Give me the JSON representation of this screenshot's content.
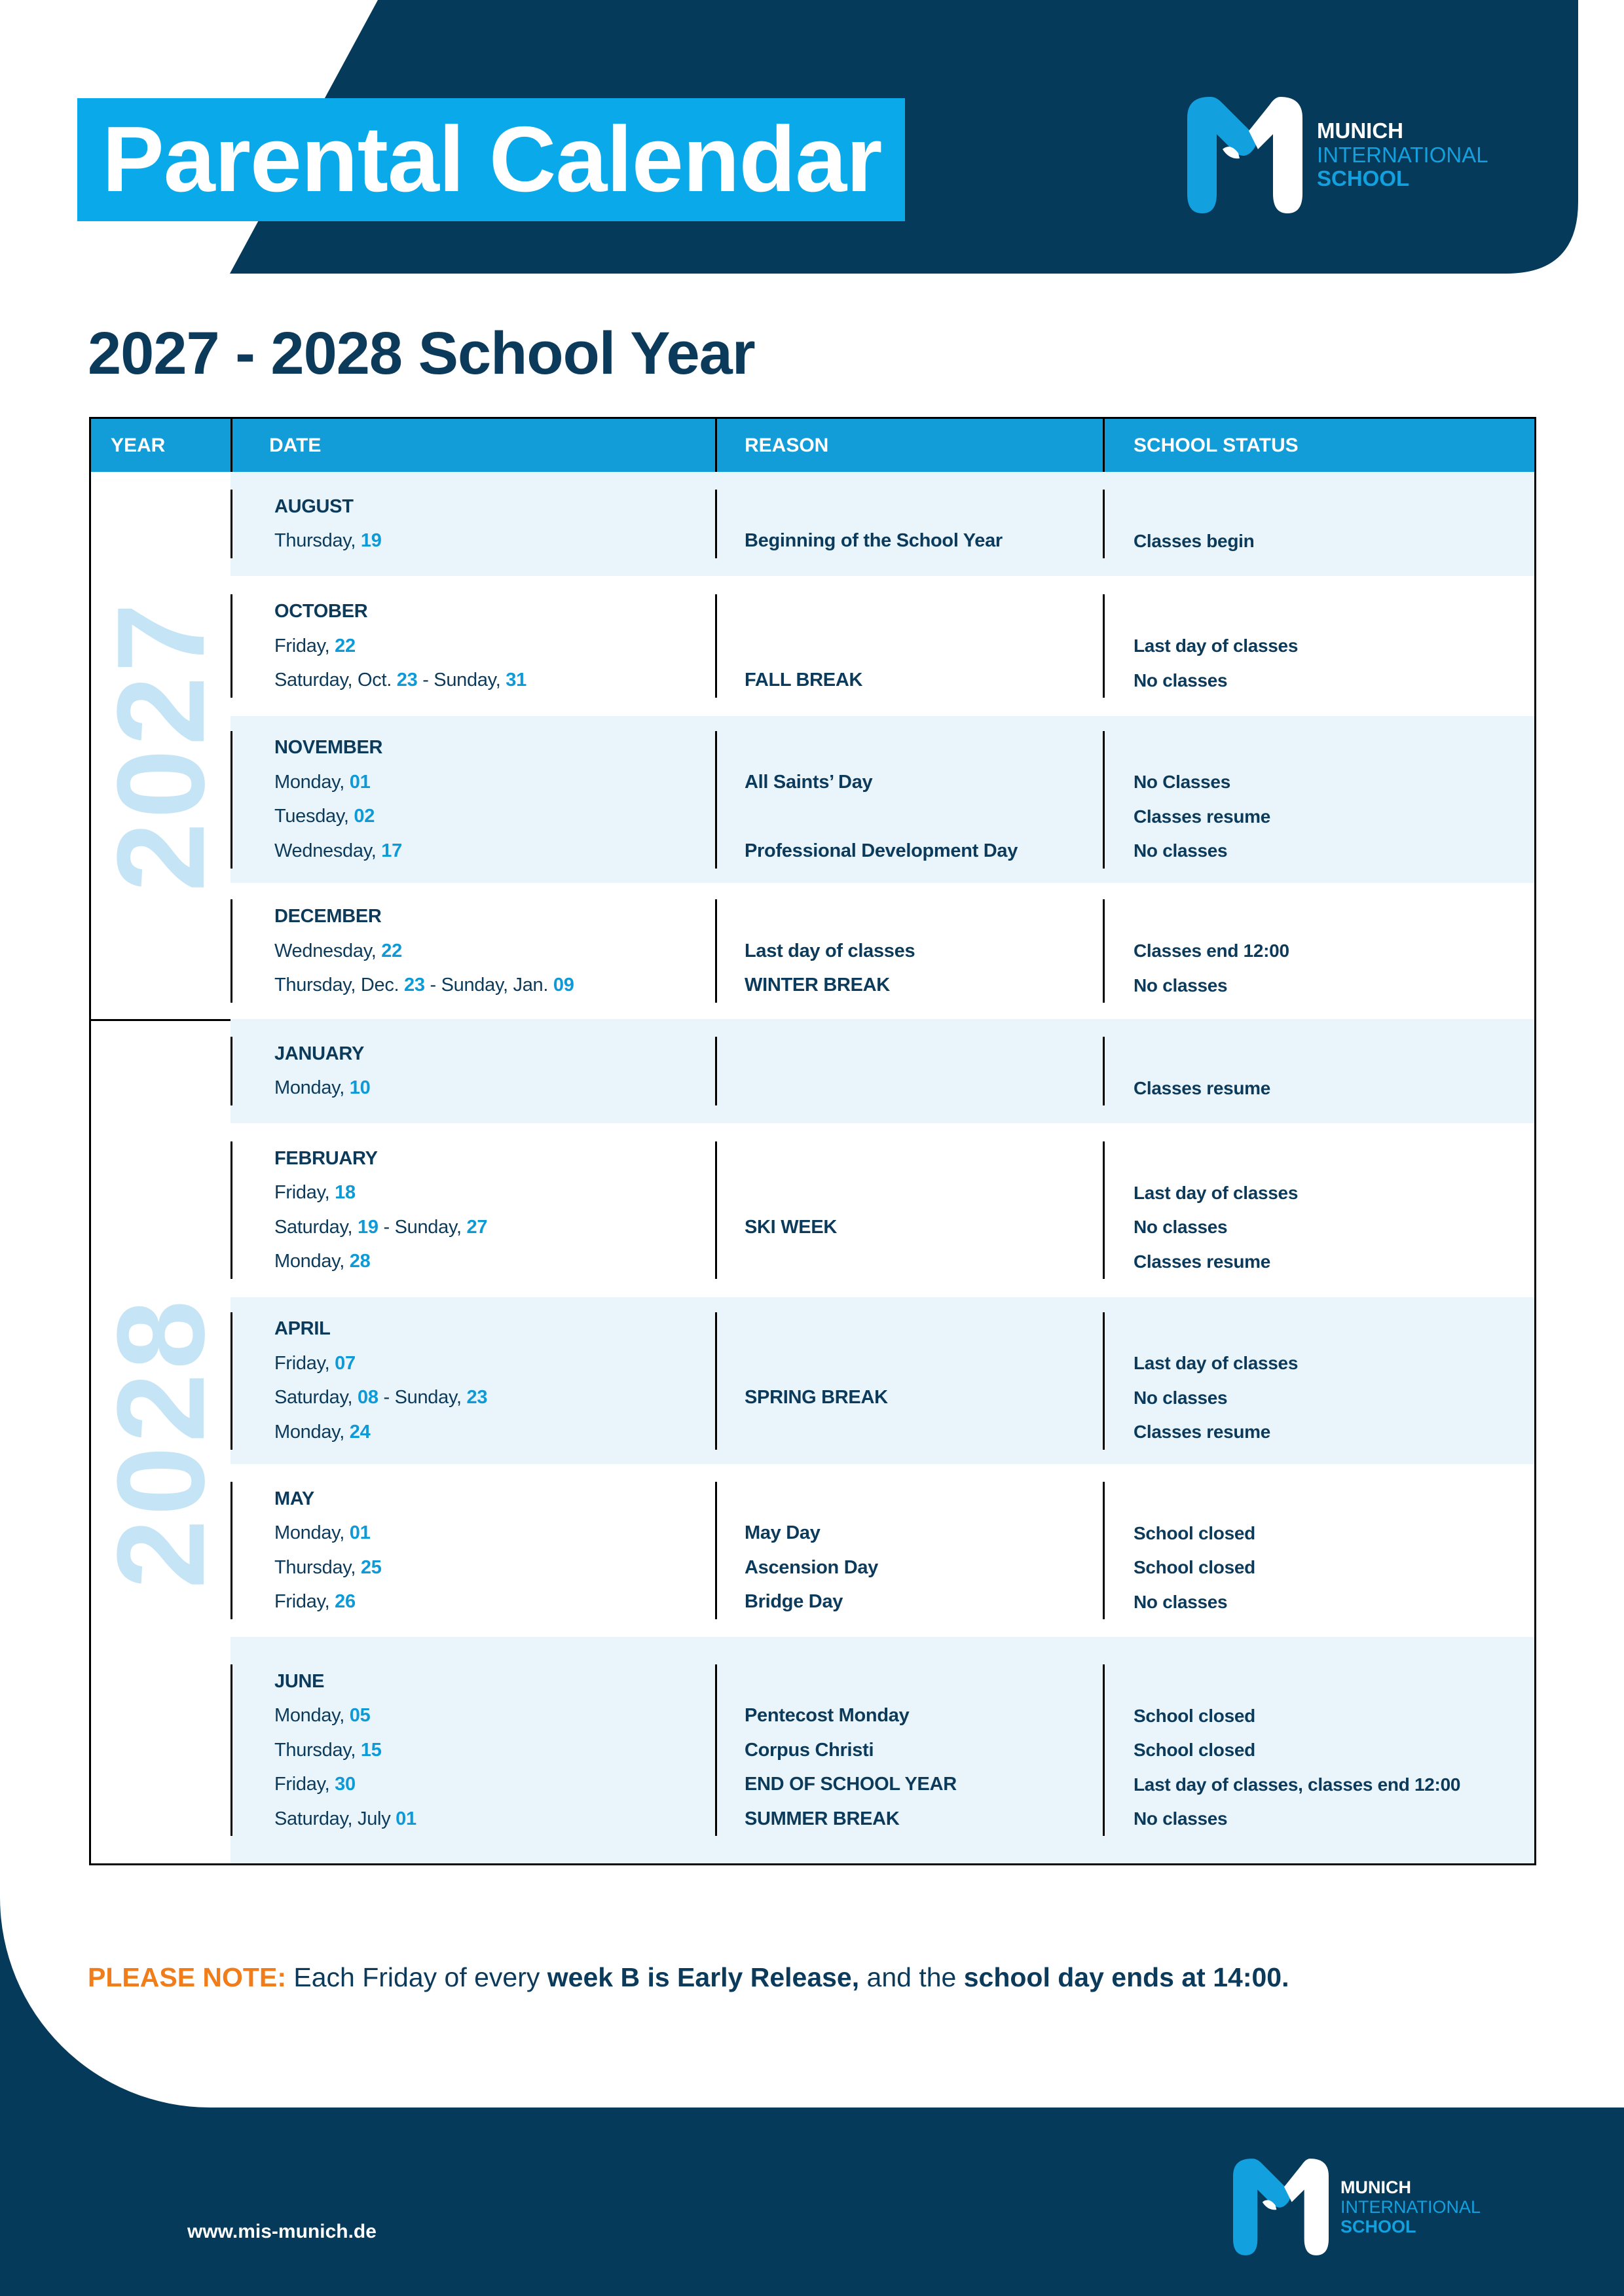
{
  "header": {
    "title": "Parental Calendar",
    "logo": {
      "line1": "MUNICH",
      "line2": "INTERNATIONAL",
      "line3": "SCHOOL"
    }
  },
  "heading": "2027 - 2028 School Year",
  "table": {
    "columns": [
      "YEAR",
      "DATE",
      "REASON",
      "SCHOOL STATUS"
    ],
    "years": [
      "2027",
      "2028"
    ],
    "rows": [
      {
        "year": "2027",
        "month": "AUGUST",
        "lines": [
          {
            "date": [
              "Thursday, ",
              "19"
            ],
            "reason": "Beginning of the School Year",
            "status": "Classes begin"
          }
        ]
      },
      {
        "year": "2027",
        "month": "OCTOBER",
        "lines": [
          {
            "date": [
              "Friday, ",
              "22"
            ],
            "reason": "",
            "status": "Last day of classes"
          },
          {
            "date": [
              "Saturday, Oct. ",
              "23",
              " - Sunday, ",
              "31"
            ],
            "reason": "FALL BREAK",
            "status": "No classes"
          }
        ]
      },
      {
        "year": "2027",
        "month": "NOVEMBER",
        "lines": [
          {
            "date": [
              "Monday, ",
              "01"
            ],
            "reason": "All Saints’ Day",
            "status": "No Classes"
          },
          {
            "date": [
              "Tuesday, ",
              "02"
            ],
            "reason": "",
            "status": "Classes resume"
          },
          {
            "date": [
              "Wednesday, ",
              "17"
            ],
            "reason": "Professional Development Day",
            "status": "No classes"
          }
        ]
      },
      {
        "year": "2027",
        "month": "DECEMBER",
        "lines": [
          {
            "date": [
              "Wednesday, ",
              "22"
            ],
            "reason": "Last day of classes",
            "status": "Classes end 12:00"
          },
          {
            "date": [
              "Thursday, Dec. ",
              "23",
              " - Sunday, Jan. ",
              "09"
            ],
            "reason": "WINTER BREAK",
            "status": "No classes"
          }
        ]
      },
      {
        "year": "2028",
        "month": "JANUARY",
        "lines": [
          {
            "date": [
              "Monday, ",
              "10"
            ],
            "reason": "",
            "status": "Classes resume"
          }
        ]
      },
      {
        "year": "2028",
        "month": "FEBRUARY",
        "lines": [
          {
            "date": [
              "Friday, ",
              "18"
            ],
            "reason": "",
            "status": "Last day of classes"
          },
          {
            "date": [
              "Saturday, ",
              "19",
              " - Sunday, ",
              "27"
            ],
            "reason": "SKI WEEK",
            "status": "No classes"
          },
          {
            "date": [
              "Monday, ",
              "28"
            ],
            "reason": "",
            "status": "Classes resume"
          }
        ]
      },
      {
        "year": "2028",
        "month": "APRIL",
        "lines": [
          {
            "date": [
              "Friday, ",
              "07"
            ],
            "reason": "",
            "status": "Last day of classes"
          },
          {
            "date": [
              "Saturday, ",
              "08",
              " - Sunday, ",
              "23"
            ],
            "reason": "SPRING BREAK",
            "status": "No classes"
          },
          {
            "date": [
              "Monday, ",
              "24"
            ],
            "reason": "",
            "status": "Classes resume"
          }
        ]
      },
      {
        "year": "2028",
        "month": "MAY",
        "lines": [
          {
            "date": [
              "Monday, ",
              "01"
            ],
            "reason": "May Day",
            "status": "School closed"
          },
          {
            "date": [
              "Thursday, ",
              "25"
            ],
            "reason": "Ascension Day",
            "status": "School closed"
          },
          {
            "date": [
              "Friday, ",
              "26"
            ],
            "reason": "Bridge Day",
            "status": "No classes"
          }
        ]
      },
      {
        "year": "2028",
        "month": "JUNE",
        "lines": [
          {
            "date": [
              "Monday, ",
              "05"
            ],
            "reason": "Pentecost Monday",
            "status": "School closed"
          },
          {
            "date": [
              "Thursday, ",
              "15"
            ],
            "reason": "Corpus Christi",
            "status": "School closed"
          },
          {
            "date": [
              "Friday, ",
              "30"
            ],
            "reason": "END OF SCHOOL YEAR",
            "status": "Last day of classes, classes end 12:00"
          },
          {
            "date": [
              "Saturday, July ",
              "01"
            ],
            "reason": "SUMMER BREAK",
            "status": "No classes"
          }
        ]
      }
    ]
  },
  "note": {
    "label": "PLEASE NOTE:",
    "t1": " Each Friday of every ",
    "b1": "week B is Early Release,",
    "t2": " and the ",
    "b2": "school day ends at 14:00."
  },
  "footer": {
    "url": "www.mis-munich.de"
  },
  "colors": {
    "dark": "#053a5a",
    "accent": "#0aaaea",
    "highlight": "#0e9ad7",
    "note": "#f07d1a",
    "row_alt": "#e9f4fb",
    "year_text": "#c5e4f5"
  }
}
